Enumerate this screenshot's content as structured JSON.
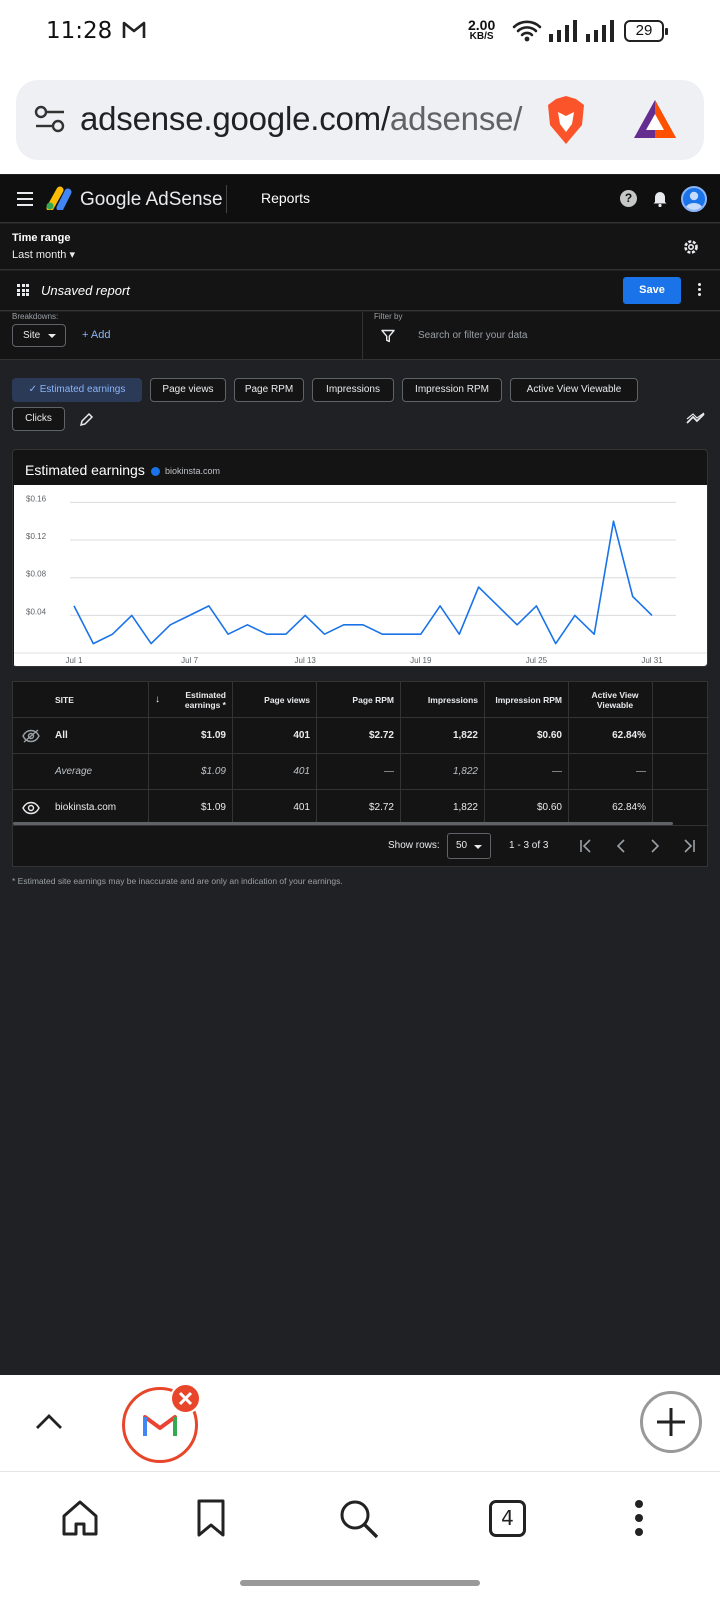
{
  "status": {
    "time": "11:28",
    "speed_value": "2.00",
    "speed_unit": "KB/S",
    "battery": "29"
  },
  "browser": {
    "url_host": "adsense.google.com/",
    "url_path": "adsense/",
    "tab_count": "4"
  },
  "header": {
    "brand": "Google AdSense",
    "section": "Reports",
    "help": "?"
  },
  "time_range": {
    "label": "Time range",
    "value": "Last month"
  },
  "report": {
    "title": "Unsaved report",
    "save_label": "Save"
  },
  "breakdowns": {
    "label": "Breakdowns:",
    "site_chip": "Site",
    "add_label": "+ Add"
  },
  "filter": {
    "label": "Filter by",
    "placeholder": "Search or filter your data"
  },
  "metrics": [
    {
      "label": "✓ Estimated earnings",
      "selected": true
    },
    {
      "label": "Page views",
      "selected": false
    },
    {
      "label": "Page RPM",
      "selected": false
    },
    {
      "label": "Impressions",
      "selected": false
    },
    {
      "label": "Impression RPM",
      "selected": false
    },
    {
      "label": "Active View Viewable",
      "selected": false
    },
    {
      "label": "Clicks",
      "selected": false
    }
  ],
  "chart": {
    "title": "Estimated earnings",
    "legend": "biokinsta.com",
    "line_color": "#1a73e8"
  },
  "chart_data": {
    "type": "line",
    "title": "Estimated earnings",
    "x": [
      1,
      2,
      3,
      4,
      5,
      6,
      7,
      8,
      9,
      10,
      11,
      12,
      13,
      14,
      15,
      16,
      17,
      18,
      19,
      20,
      21,
      22,
      23,
      24,
      25,
      26,
      27,
      28,
      29,
      30,
      31
    ],
    "x_ticks": [
      "Jul 1",
      "Jul 7",
      "Jul 13",
      "Jul 19",
      "Jul 25",
      "Jul 31"
    ],
    "y_ticks": [
      "$0.04",
      "$0.08",
      "$0.12",
      "$0.16"
    ],
    "ylim": [
      0,
      0.17
    ],
    "series": [
      {
        "name": "biokinsta.com",
        "values": [
          0.05,
          0.01,
          0.02,
          0.04,
          0.01,
          0.03,
          0.04,
          0.05,
          0.02,
          0.03,
          0.02,
          0.02,
          0.04,
          0.02,
          0.03,
          0.03,
          0.02,
          0.02,
          0.02,
          0.05,
          0.02,
          0.07,
          0.05,
          0.03,
          0.05,
          0.01,
          0.04,
          0.02,
          0.14,
          0.06,
          0.04
        ]
      }
    ],
    "grid": true
  },
  "table": {
    "headers": [
      "SITE",
      "Estimated earnings *",
      "Page views",
      "Page RPM",
      "Impressions",
      "Impression RPM",
      "Active View Viewable"
    ],
    "rows": [
      {
        "site": "All",
        "earnings": "$1.09",
        "views": "401",
        "rpm": "$2.72",
        "impressions": "1,822",
        "imp_rpm": "$0.60",
        "viewable": "62.84%"
      },
      {
        "site": "Average",
        "earnings": "$1.09",
        "views": "401",
        "rpm": "—",
        "impressions": "1,822",
        "imp_rpm": "—",
        "viewable": "—"
      },
      {
        "site": "biokinsta.com",
        "earnings": "$1.09",
        "views": "401",
        "rpm": "$2.72",
        "impressions": "1,822",
        "imp_rpm": "$0.60",
        "viewable": "62.84%"
      }
    ],
    "show_rows_label": "Show rows:",
    "rows_per_page": "50",
    "range": "1 - 3 of 3"
  },
  "footnote": "* Estimated site earnings may be inaccurate and are only an indication of your earnings."
}
